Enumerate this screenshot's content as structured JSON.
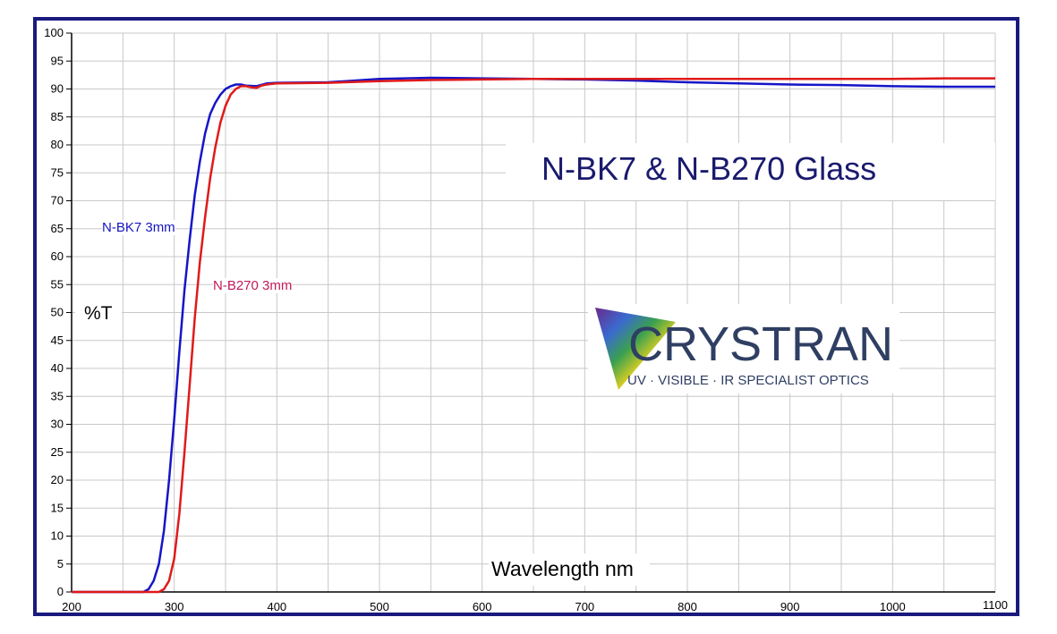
{
  "chart_data": {
    "type": "line",
    "title": "N-BK7 & N-B270 Glass",
    "xlabel": "Wavelength nm",
    "ylabel": "%T",
    "xlim": [
      200,
      1100
    ],
    "ylim": [
      0,
      100
    ],
    "x_ticks": [
      200,
      300,
      400,
      500,
      600,
      700,
      800,
      900,
      1000,
      1100
    ],
    "y_ticks": [
      0,
      5,
      10,
      15,
      20,
      25,
      30,
      35,
      40,
      45,
      50,
      55,
      60,
      65,
      70,
      75,
      80,
      85,
      90,
      95,
      100
    ],
    "grid": true,
    "series": [
      {
        "name": "N-BK7 3mm",
        "color": "#1515c8",
        "x": [
          200,
          270,
          275,
          280,
          285,
          290,
          295,
          300,
          305,
          310,
          315,
          320,
          325,
          330,
          335,
          340,
          345,
          350,
          355,
          360,
          365,
          370,
          380,
          390,
          400,
          450,
          500,
          550,
          600,
          650,
          700,
          750,
          800,
          850,
          900,
          950,
          1000,
          1050,
          1100
        ],
        "y": [
          0,
          0,
          0.5,
          2,
          5,
          11,
          20,
          31,
          43,
          54,
          63,
          71,
          77,
          82,
          85.5,
          87.5,
          89,
          90,
          90.5,
          90.8,
          90.8,
          90.6,
          90.5,
          91,
          91.1,
          91.2,
          91.8,
          92,
          91.9,
          91.8,
          91.7,
          91.5,
          91.2,
          91,
          90.8,
          90.7,
          90.5,
          90.4,
          90.4
        ]
      },
      {
        "name": "N-B270 3mm",
        "color": "#e01a1a",
        "x": [
          200,
          285,
          290,
          295,
          300,
          305,
          310,
          315,
          320,
          325,
          330,
          335,
          340,
          345,
          350,
          355,
          360,
          365,
          370,
          375,
          380,
          385,
          390,
          400,
          450,
          500,
          550,
          600,
          650,
          700,
          750,
          800,
          850,
          900,
          950,
          1000,
          1050,
          1100
        ],
        "y": [
          0,
          0,
          0.5,
          2,
          6,
          14,
          25,
          37,
          49,
          59,
          67,
          74,
          79.5,
          84,
          87,
          89,
          90,
          90.5,
          90.5,
          90.3,
          90.2,
          90.6,
          90.8,
          91,
          91.1,
          91.4,
          91.6,
          91.7,
          91.8,
          91.8,
          91.8,
          91.8,
          91.8,
          91.8,
          91.8,
          91.8,
          91.9,
          91.9
        ]
      }
    ]
  },
  "logo": {
    "name": "CRYSTRAN",
    "tagline": "UV · VISIBLE · IR SPECIALIST OPTICS"
  }
}
